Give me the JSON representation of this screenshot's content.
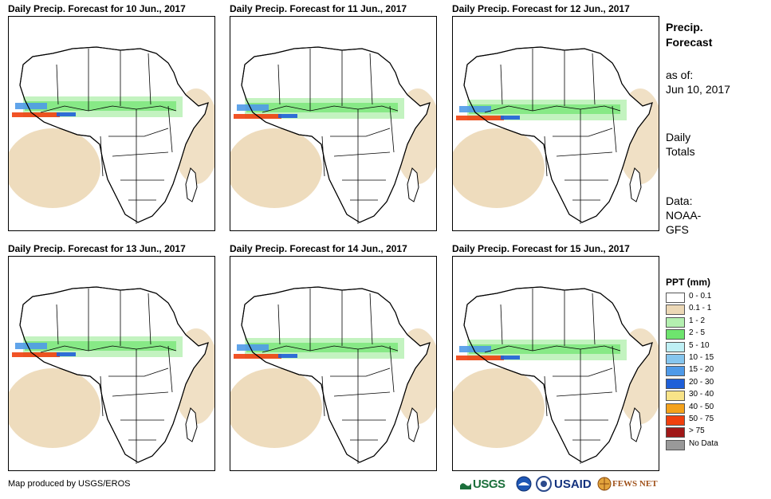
{
  "panels": [
    {
      "title": "Daily Precip. Forecast for 10 Jun., 2017"
    },
    {
      "title": "Daily Precip. Forecast for 11 Jun., 2017"
    },
    {
      "title": "Daily Precip. Forecast for 12 Jun., 2017"
    },
    {
      "title": "Daily Precip. Forecast for 13 Jun., 2017"
    },
    {
      "title": "Daily Precip. Forecast for 14 Jun., 2017"
    },
    {
      "title": "Daily Precip. Forecast for 15 Jun., 2017"
    }
  ],
  "side": {
    "title_line1": "Precip.",
    "title_line2": "Forecast",
    "asof_label": "as of:",
    "asof_date": "Jun 10, 2017",
    "totals_line1": "Daily",
    "totals_line2": "Totals",
    "data_line1": "Data:",
    "data_line2": "NOAA-",
    "data_line3": "GFS"
  },
  "legend": {
    "title": "PPT (mm)",
    "items": [
      {
        "label": "0 - 0.1",
        "color": "#ffffff"
      },
      {
        "label": "0.1 - 1",
        "color": "#ecd8b6"
      },
      {
        "label": "1 - 2",
        "color": "#b4f0b0"
      },
      {
        "label": "2 - 5",
        "color": "#6ee46e"
      },
      {
        "label": "5 - 10",
        "color": "#bff0f5"
      },
      {
        "label": "10 - 15",
        "color": "#86c6ef"
      },
      {
        "label": "15 - 20",
        "color": "#4f9ae8"
      },
      {
        "label": "20 - 30",
        "color": "#1f5fd8"
      },
      {
        "label": "30 - 40",
        "color": "#f8e388"
      },
      {
        "label": "40 - 50",
        "color": "#f4a21c"
      },
      {
        "label": "50 - 75",
        "color": "#f0400e"
      },
      {
        "label": "> 75",
        "color": "#a01818"
      },
      {
        "label": "No Data",
        "color": "#999999"
      }
    ]
  },
  "credit": "Map produced by USGS/EROS",
  "logos": {
    "usgs": "USGS",
    "usaid": "USAID",
    "fewsnet": "FEWS NET"
  }
}
